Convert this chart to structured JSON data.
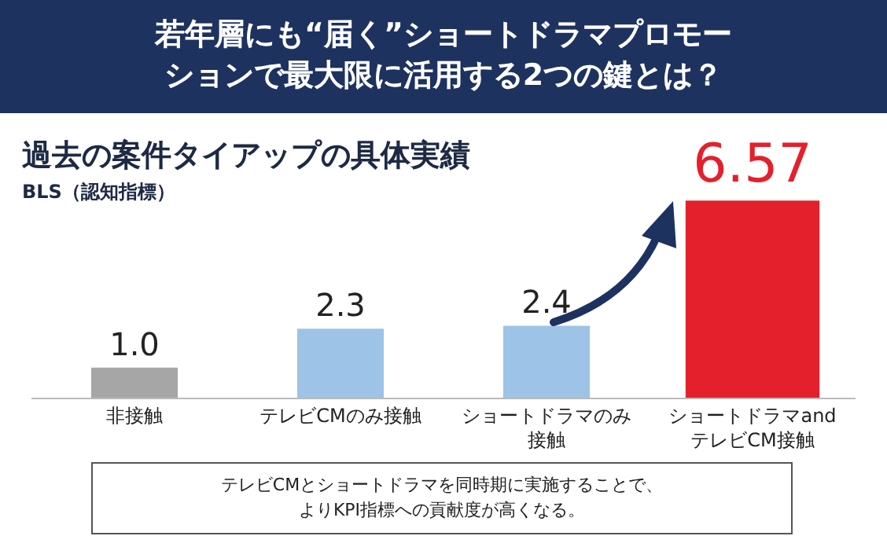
{
  "chart_data": {
    "type": "bar",
    "title": "若年層にも“届く”ショートドラマプロモーションで最大限に活用する2つの鍵とは？",
    "subtitle": "過去の案件タイアップの具体実績",
    "ylabel": "BLS（認知指標）",
    "categories": [
      "非接触",
      "テレビCMのみ接触",
      "ショートドラマのみ接触",
      "ショートドラマand\nテレビCM接触"
    ],
    "values": [
      1.0,
      2.3,
      2.4,
      6.57
    ],
    "colors": [
      "#a6a6a6",
      "#9dc3e6",
      "#9dc3e6",
      "#e3202b"
    ],
    "value_labels": [
      "1.0",
      "2.3",
      "2.4",
      "6.57"
    ],
    "annotations": [
      "テレビCMとショートドラマを同時期に実施することで、よりKPI指標への貢献度が高くなる。"
    ]
  }
}
